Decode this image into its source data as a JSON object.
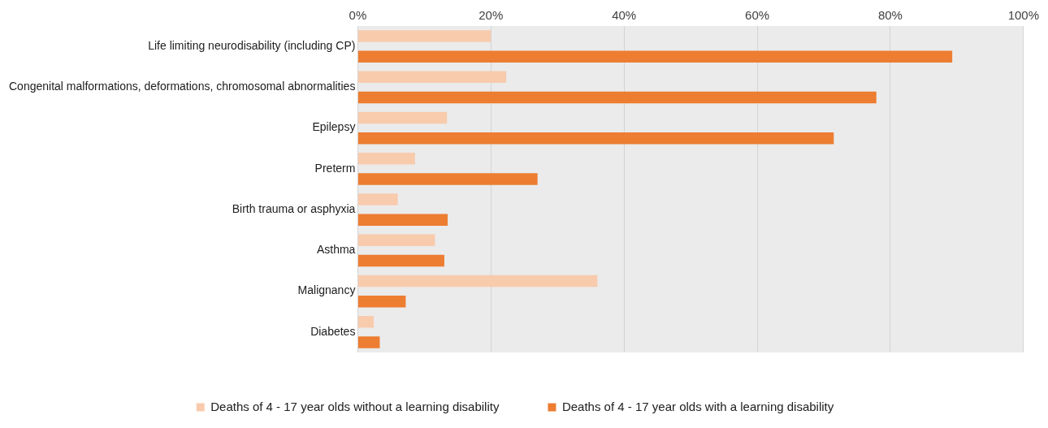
{
  "chart_data": {
    "type": "bar",
    "orientation": "horizontal",
    "categories": [
      "Life limiting neurodisability (including CP)",
      "Congenital malformations, deformations, chromosomal abnormalities",
      "Epilepsy",
      "Preterm",
      "Birth trauma or asphyxia",
      "Asthma",
      "Malignancy",
      "Diabetes"
    ],
    "series": [
      {
        "name": "Deaths of 4 - 17 year olds without a learning disability",
        "color": "#f8cbad",
        "values": [
          20,
          22.3,
          13.4,
          8.6,
          6,
          11.6,
          36,
          2.4
        ]
      },
      {
        "name": "Deaths of 4 - 17 year olds with a learning disability",
        "color": "#ed7d31",
        "values": [
          89.3,
          77.9,
          71.5,
          27,
          13.5,
          13,
          7.2,
          3.3
        ]
      }
    ],
    "xlim": [
      0,
      100
    ],
    "xticks": [
      {
        "value": 0,
        "label": "0%"
      },
      {
        "value": 20,
        "label": "20%"
      },
      {
        "value": 40,
        "label": "40%"
      },
      {
        "value": 60,
        "label": "60%"
      },
      {
        "value": 80,
        "label": "80%"
      },
      {
        "value": 100,
        "label": "100%"
      }
    ],
    "grid": "x",
    "legend": "bottom"
  }
}
